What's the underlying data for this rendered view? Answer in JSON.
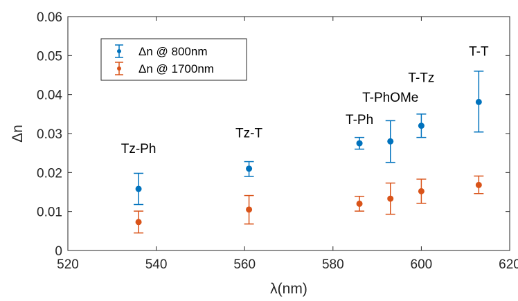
{
  "chart_data": {
    "type": "scatter",
    "xlabel": "λ(nm)",
    "ylabel": "Δn",
    "xlim": [
      520,
      620
    ],
    "ylim": [
      0,
      0.06
    ],
    "xticks": [
      "520",
      "540",
      "560",
      "580",
      "600",
      "620"
    ],
    "yticks": [
      "0",
      "0.01",
      "0.02",
      "0.03",
      "0.04",
      "0.05",
      "0.06"
    ],
    "grid": false,
    "legend_position": "top-left",
    "series": [
      {
        "name": "Δn @ 800nm",
        "color": "#0072BD",
        "points": [
          {
            "x": 536,
            "y": 0.0158,
            "low": 0.0118,
            "high": 0.0198
          },
          {
            "x": 561,
            "y": 0.021,
            "low": 0.019,
            "high": 0.0228
          },
          {
            "x": 586,
            "y": 0.0275,
            "low": 0.026,
            "high": 0.029
          },
          {
            "x": 593,
            "y": 0.028,
            "low": 0.0226,
            "high": 0.0333
          },
          {
            "x": 600,
            "y": 0.032,
            "low": 0.029,
            "high": 0.035
          },
          {
            "x": 613,
            "y": 0.0381,
            "low": 0.0304,
            "high": 0.046
          }
        ]
      },
      {
        "name": "Δn @ 1700nm",
        "color": "#D95319",
        "points": [
          {
            "x": 536,
            "y": 0.0073,
            "low": 0.0045,
            "high": 0.0101
          },
          {
            "x": 561,
            "y": 0.0105,
            "low": 0.0068,
            "high": 0.0141
          },
          {
            "x": 586,
            "y": 0.012,
            "low": 0.0101,
            "high": 0.0139
          },
          {
            "x": 593,
            "y": 0.0133,
            "low": 0.0093,
            "high": 0.0173
          },
          {
            "x": 600,
            "y": 0.0152,
            "low": 0.0121,
            "high": 0.0183
          },
          {
            "x": 613,
            "y": 0.0168,
            "low": 0.0146,
            "high": 0.0191
          }
        ]
      }
    ],
    "annotations": [
      {
        "text": "Tz-Ph",
        "x": 536,
        "y": 0.025
      },
      {
        "text": "Tz-T",
        "x": 561,
        "y": 0.029
      },
      {
        "text": "T-Ph",
        "x": 586,
        "y": 0.0325
      },
      {
        "text": "T-PhOMe",
        "x": 593,
        "y": 0.0382
      },
      {
        "text": "T-Tz",
        "x": 600,
        "y": 0.0432
      },
      {
        "text": "T-T",
        "x": 613,
        "y": 0.05
      }
    ]
  }
}
